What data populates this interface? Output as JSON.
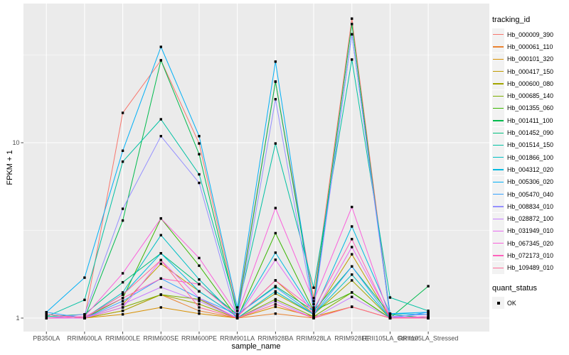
{
  "chart_data": {
    "type": "line",
    "title": "",
    "xlabel": "sample_name",
    "ylabel": "FPKM + 1",
    "y_scale": "log10",
    "ylim": [
      0.85,
      62
    ],
    "grid": true,
    "legend_position": "right",
    "legend_title": "tracking_id",
    "y_ticks": [
      1,
      10
    ],
    "y_tick_labels": [
      "1",
      "10"
    ],
    "y_minor_ticks": [
      3.162,
      31.62
    ],
    "categories": [
      "PB350LA",
      "RRIM600LA",
      "RRIM600LE",
      "RRIM600SE",
      "RRIM600PE",
      "RRIM901LA",
      "RRIM928BA",
      "RRIM928LA",
      "RRIM928LE",
      "RRII105LA_Control",
      "RRII105LA_Stressed"
    ],
    "point_shape": "filled-square",
    "point_color": "#000000",
    "series": [
      {
        "name": "Hb_000009_390",
        "color": "#F8766D",
        "values": [
          1.05,
          1.0,
          14.8,
          29.5,
          9.9,
          1.1,
          22.3,
          1.3,
          51.0,
          1.05,
          1.0
        ]
      },
      {
        "name": "Hb_000061_110",
        "color": "#EA8331",
        "values": [
          1.0,
          1.0,
          1.1,
          1.36,
          1.1,
          1.0,
          1.06,
          1.0,
          1.16,
          1.0,
          1.0
        ]
      },
      {
        "name": "Hb_000101_320",
        "color": "#D89000",
        "values": [
          1.0,
          1.0,
          1.05,
          1.15,
          1.06,
          1.0,
          1.16,
          1.02,
          1.16,
          1.0,
          1.0
        ]
      },
      {
        "name": "Hb_000417_150",
        "color": "#C09B00",
        "values": [
          1.0,
          1.0,
          1.2,
          2.04,
          1.42,
          1.02,
          1.64,
          1.05,
          2.31,
          1.0,
          1.0
        ]
      },
      {
        "name": "Hb_000600_080",
        "color": "#A3A500",
        "values": [
          1.0,
          1.0,
          1.1,
          1.36,
          1.2,
          1.0,
          1.38,
          1.05,
          1.64,
          1.0,
          1.0
        ]
      },
      {
        "name": "Hb_000685_140",
        "color": "#7CAE00",
        "values": [
          1.0,
          1.0,
          1.15,
          1.36,
          1.28,
          1.0,
          1.28,
          1.02,
          1.4,
          1.0,
          1.0
        ]
      },
      {
        "name": "Hb_001355_060",
        "color": "#39B600",
        "values": [
          1.0,
          1.0,
          1.3,
          3.7,
          1.99,
          1.0,
          3.05,
          1.1,
          1.4,
          1.0,
          1.0
        ]
      },
      {
        "name": "Hb_001411_100",
        "color": "#00BB4E",
        "values": [
          1.0,
          1.0,
          3.6,
          29.5,
          8.6,
          1.05,
          22.3,
          1.2,
          47.5,
          1.0,
          1.52
        ]
      },
      {
        "name": "Hb_001452_090",
        "color": "#00BF7D",
        "values": [
          1.02,
          1.05,
          1.6,
          2.34,
          1.56,
          1.05,
          1.52,
          1.1,
          1.97,
          1.05,
          1.0
        ]
      },
      {
        "name": "Hb_001514_150",
        "color": "#00C1A3",
        "values": [
          1.02,
          1.27,
          7.8,
          13.6,
          6.6,
          1.1,
          9.9,
          1.49,
          29.8,
          1.31,
          1.1
        ]
      },
      {
        "name": "Hb_001866_100",
        "color": "#00BFC4",
        "values": [
          1.0,
          1.0,
          1.4,
          2.97,
          1.66,
          1.0,
          1.42,
          1.05,
          1.77,
          1.0,
          1.0
        ]
      },
      {
        "name": "Hb_004312_020",
        "color": "#00BAE0",
        "values": [
          1.05,
          1.0,
          1.36,
          2.34,
          1.42,
          1.02,
          2.36,
          1.08,
          3.33,
          1.06,
          1.05
        ]
      },
      {
        "name": "Hb_005306_020",
        "color": "#00B0F6",
        "values": [
          1.08,
          1.7,
          9.0,
          35.2,
          10.9,
          1.15,
          29.0,
          1.15,
          41.5,
          1.06,
          1.08
        ]
      },
      {
        "name": "Hb_005470_040",
        "color": "#35A2FF",
        "values": [
          1.08,
          1.0,
          1.25,
          1.68,
          1.3,
          1.05,
          1.5,
          1.05,
          1.97,
          1.0,
          1.08
        ]
      },
      {
        "name": "Hb_008834_010",
        "color": "#9590FF",
        "values": [
          1.0,
          1.05,
          4.2,
          10.9,
          5.9,
          1.0,
          17.7,
          1.1,
          41.5,
          1.02,
          1.05
        ]
      },
      {
        "name": "Hb_028872_100",
        "color": "#C77CFF",
        "values": [
          1.0,
          1.0,
          1.2,
          1.5,
          1.25,
          1.0,
          1.25,
          1.0,
          1.32,
          1.0,
          1.0
        ]
      },
      {
        "name": "Hb_031949_010",
        "color": "#E76BF3",
        "values": [
          1.0,
          1.0,
          1.15,
          2.14,
          1.3,
          1.0,
          2.15,
          1.05,
          2.54,
          1.02,
          1.0
        ]
      },
      {
        "name": "Hb_067345_020",
        "color": "#FA62DB",
        "values": [
          1.0,
          1.02,
          1.8,
          3.7,
          2.2,
          1.05,
          4.24,
          1.25,
          4.3,
          1.0,
          1.02
        ]
      },
      {
        "name": "Hb_072173_010",
        "color": "#FF62BC",
        "values": [
          1.0,
          1.02,
          1.3,
          1.68,
          1.56,
          1.02,
          1.64,
          1.12,
          2.82,
          1.0,
          1.02
        ]
      },
      {
        "name": "Hb_109489_010",
        "color": "#FF6A98",
        "values": [
          1.05,
          1.0,
          1.36,
          2.14,
          1.15,
          1.0,
          1.2,
          1.0,
          1.16,
          1.0,
          1.0
        ]
      }
    ],
    "quant_legend": {
      "title": "quant_status",
      "items": [
        "OK"
      ]
    },
    "colors": {
      "panel_background": "#EBEBEB",
      "gridline": "#FFFFFF",
      "tick": "#333333",
      "tick_label": "#4D4D4D",
      "legend_key_background": "#F2F2F2"
    }
  }
}
